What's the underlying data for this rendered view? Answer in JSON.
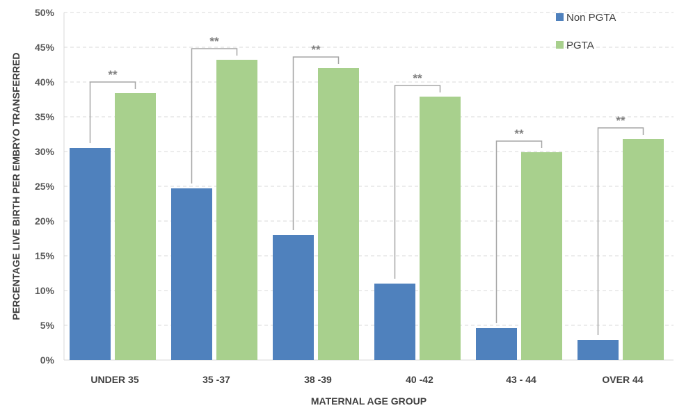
{
  "chart_data": {
    "type": "bar",
    "title": "",
    "xlabel": "MATERNAL AGE GROUP",
    "ylabel": "PERCENTAGE LIVE BIRTH PER EMBRYO TRANSFERRED",
    "categories": [
      "UNDER 35",
      "35 -37",
      "38 -39",
      "40 -42",
      "43 - 44",
      "OVER 44"
    ],
    "series": [
      {
        "name": "Non PGTA",
        "color": "#4f81bd",
        "values": [
          30.5,
          24.7,
          18.0,
          11.0,
          4.6,
          2.9
        ]
      },
      {
        "name": "PGTA",
        "color": "#a8d08d",
        "values": [
          38.4,
          43.2,
          42.0,
          37.9,
          29.9,
          31.8
        ]
      }
    ],
    "ylim": [
      0,
      50
    ],
    "yticks": [
      0,
      5,
      10,
      15,
      20,
      25,
      30,
      35,
      40,
      45,
      50
    ],
    "ytick_suffix": "%",
    "grid": true,
    "legend_position": "top-right",
    "significance": [
      {
        "category": "UNDER 35",
        "label": "**"
      },
      {
        "category": "35 -37",
        "label": "**"
      },
      {
        "category": "38 -39",
        "label": "**"
      },
      {
        "category": "40 -42",
        "label": "**"
      },
      {
        "category": "43 - 44",
        "label": "**"
      },
      {
        "category": "OVER 44",
        "label": "**"
      }
    ]
  }
}
